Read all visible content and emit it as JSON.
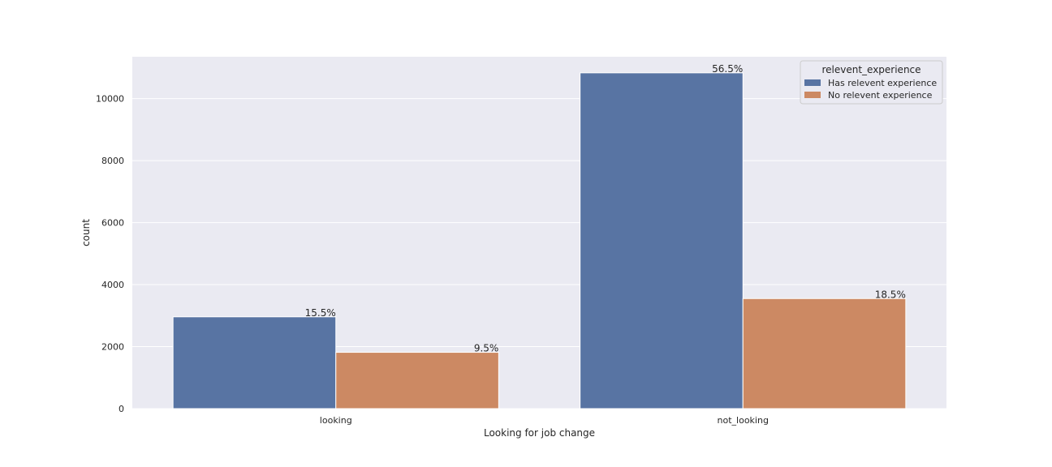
{
  "chart_data": {
    "type": "bar",
    "title": "",
    "xlabel": "Looking for job change",
    "ylabel": "count",
    "categories": [
      "looking",
      "not_looking"
    ],
    "series": [
      {
        "name": "Has relevent experience",
        "values": [
          2961,
          10831
        ],
        "labels": [
          "15.5%",
          "56.5%"
        ],
        "color": "#5874a3"
      },
      {
        "name": "No relevent experience",
        "values": [
          1816,
          3550
        ],
        "labels": [
          "9.5%",
          "18.5%"
        ],
        "color": "#cc8963"
      }
    ],
    "ylim": [
      0,
      11350
    ],
    "yticks": [
      0,
      2000,
      4000,
      6000,
      8000,
      10000
    ],
    "ytick_labels": [
      "0",
      "2000",
      "4000",
      "6000",
      "8000",
      "10000"
    ],
    "grid": true,
    "background": "#eaeaf2",
    "legend": {
      "title": "relevent_experience",
      "placement": "top-right"
    }
  }
}
